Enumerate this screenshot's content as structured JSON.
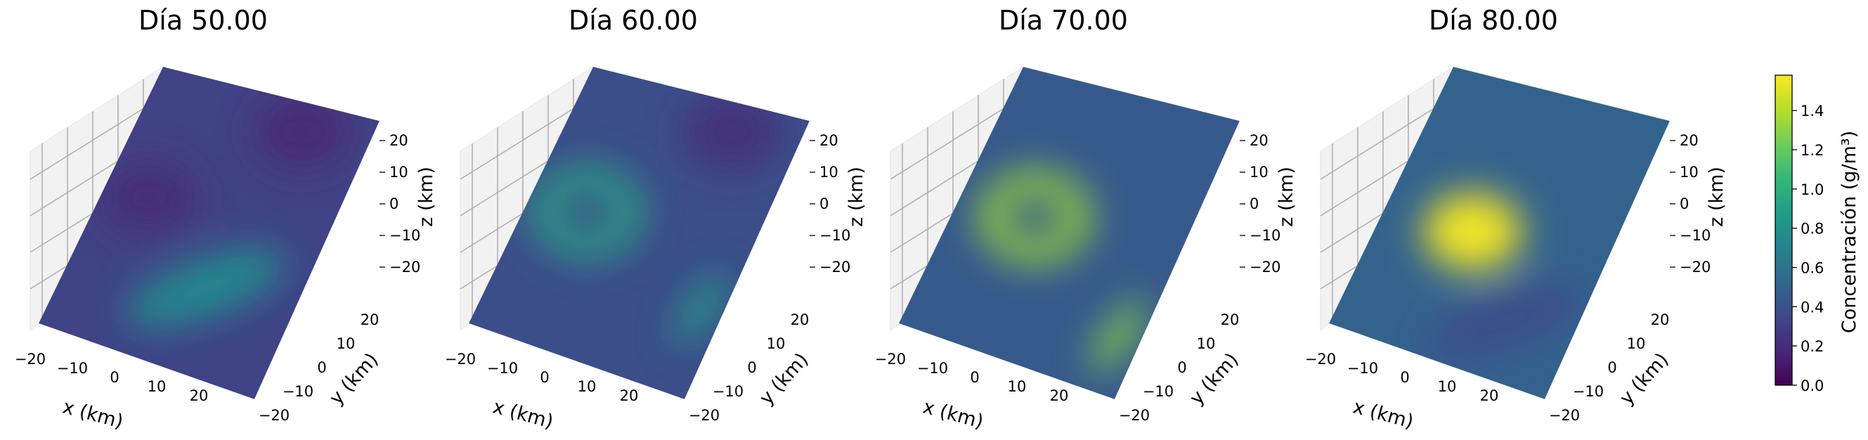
{
  "figure": {
    "colors": {
      "colormap": "viridis",
      "viridis": [
        "#440154",
        "#482878",
        "#3e4989",
        "#31688e",
        "#26828e",
        "#1f9e89",
        "#35b779",
        "#6ece58",
        "#b5de2b",
        "#fde725"
      ],
      "pane": "#f2f2f2",
      "grid": "#b0b0b0"
    }
  },
  "chart_data": {
    "type": "surface3d",
    "panels": [
      {
        "title": "Día 50.00",
        "dominant_feature": "dark low-concentration blob near x=-15, y=0 with broad green band; background ~0.3-0.4",
        "blobs": [
          {
            "name": "background",
            "center": [
              0,
              0
            ],
            "value": 0.32
          },
          {
            "name": "low-blob",
            "center": [
              -15,
              2
            ],
            "value": 0.2
          },
          {
            "name": "green-band",
            "center": [
              5,
              -10
            ],
            "value": 0.75
          },
          {
            "name": "upper-dark",
            "center": [
              10,
              20
            ],
            "value": 0.18
          }
        ]
      },
      {
        "title": "Día 60.00",
        "dominant_feature": "green ring around x=-12, y=0 with streak near x=20, y=-10",
        "blobs": [
          {
            "name": "background",
            "center": [
              0,
              0
            ],
            "value": 0.38
          },
          {
            "name": "ring",
            "center": [
              -12,
              0
            ],
            "value": 0.95
          },
          {
            "name": "streak",
            "center": [
              20,
              -10
            ],
            "value": 0.9
          },
          {
            "name": "upper-dark",
            "center": [
              10,
              20
            ],
            "value": 0.22
          }
        ]
      },
      {
        "title": "Día 70.00",
        "dominant_feature": "bright yellow-green ring centered near x=-8, y=0 and thin streak near x=20, y=-15",
        "blobs": [
          {
            "name": "background",
            "center": [
              0,
              0
            ],
            "value": 0.45
          },
          {
            "name": "ring",
            "center": [
              -8,
              0
            ],
            "value": 1.35
          },
          {
            "name": "streak",
            "center": [
              20,
              -15
            ],
            "value": 1.3
          }
        ]
      },
      {
        "title": "Día 80.00",
        "dominant_feature": "bright yellow peak near x=-5, y=-2 with teal halo",
        "blobs": [
          {
            "name": "background",
            "center": [
              0,
              0
            ],
            "value": 0.5
          },
          {
            "name": "peak",
            "center": [
              -5,
              -2
            ],
            "value": 1.55
          },
          {
            "name": "lower-band",
            "center": [
              10,
              -15
            ],
            "value": 0.38
          }
        ]
      }
    ],
    "xlabel": "x (km)",
    "ylabel": "y (km)",
    "zlabel": "z (km)",
    "xticks": [
      "−20",
      "−10",
      "0",
      "10",
      "20"
    ],
    "yticks": [
      "−20",
      "−10",
      "0",
      "10",
      "20"
    ],
    "zticks": [
      "20",
      "10",
      "0",
      "−10",
      "−20"
    ],
    "xlim": [
      -25,
      25
    ],
    "ylim": [
      -25,
      25
    ],
    "zlim": [
      -25,
      25
    ],
    "colorbar": {
      "label": "Concentración (g/m³)",
      "ticks": [
        "0.0",
        "0.2",
        "0.4",
        "0.6",
        "0.8",
        "1.0",
        "1.2",
        "1.4"
      ],
      "tick_values": [
        0,
        0.2,
        0.4,
        0.6,
        0.8,
        1.0,
        1.2,
        1.4
      ],
      "range": [
        0,
        1.58
      ]
    }
  }
}
